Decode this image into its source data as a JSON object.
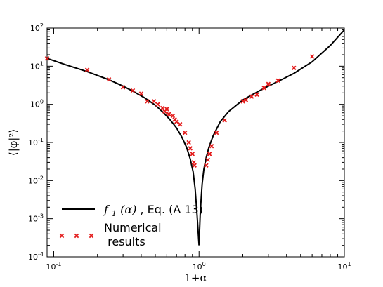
{
  "chart_data": {
    "type": "line",
    "title": "",
    "xlabel": "1+α",
    "ylabel": "⟨|φ|²⟩",
    "xscale": "log",
    "yscale": "log",
    "xlim": [
      0.09,
      10
    ],
    "ylim": [
      0.0001,
      100
    ],
    "x_ticks": [
      {
        "value": 0.1,
        "base": "10",
        "exp": "-1"
      },
      {
        "value": 1,
        "base": "10",
        "exp": "0"
      },
      {
        "value": 10,
        "base": "10",
        "exp": "1"
      }
    ],
    "y_ticks": [
      {
        "value": 0.0001,
        "base": "10",
        "exp": "-4"
      },
      {
        "value": 0.001,
        "base": "10",
        "exp": "-3"
      },
      {
        "value": 0.01,
        "base": "10",
        "exp": "-2"
      },
      {
        "value": 0.1,
        "base": "10",
        "exp": "-1"
      },
      {
        "value": 1,
        "base": "10",
        "exp": "0"
      },
      {
        "value": 10,
        "base": "10",
        "exp": "1"
      },
      {
        "value": 100,
        "base": "10",
        "exp": "2"
      }
    ],
    "grid": false,
    "legend_position": "lower-left",
    "series": [
      {
        "name": "f₁(α), Eq. (A 13)",
        "legend_func": "f",
        "legend_sub": "1",
        "legend_arg": "(α)",
        "legend_rest": ", Eq. (A 13)",
        "style": "line",
        "color": "#000000",
        "x": [
          0.09,
          0.12,
          0.17,
          0.24,
          0.3,
          0.36,
          0.42,
          0.5,
          0.57,
          0.63,
          0.7,
          0.76,
          0.82,
          0.87,
          0.91,
          0.94,
          0.97,
          1.0,
          1.02,
          1.05,
          1.08,
          1.12,
          1.17,
          1.25,
          1.4,
          1.6,
          2.0,
          2.5,
          3.0,
          3.5,
          4.5,
          6.0,
          8.0,
          10.0
        ],
        "y": [
          16,
          11,
          7.2,
          4.4,
          3.0,
          2.1,
          1.5,
          0.95,
          0.6,
          0.4,
          0.24,
          0.14,
          0.075,
          0.037,
          0.017,
          0.006,
          0.0012,
          0.0002,
          0.0015,
          0.008,
          0.02,
          0.04,
          0.075,
          0.15,
          0.35,
          0.65,
          1.3,
          2.1,
          3.0,
          4.0,
          6.5,
          13,
          35,
          90
        ]
      },
      {
        "name": "Numerical\n results",
        "legend_line1": "Numerical",
        "legend_line2": " results",
        "style": "scatter",
        "marker": "x",
        "color": "#e31a1a",
        "x": [
          0.09,
          0.17,
          0.24,
          0.3,
          0.35,
          0.4,
          0.44,
          0.49,
          0.52,
          0.56,
          0.58,
          0.6,
          0.62,
          0.66,
          0.68,
          0.7,
          0.74,
          0.8,
          0.85,
          0.87,
          0.9,
          0.92,
          0.93,
          1.12,
          1.15,
          1.18,
          1.22,
          1.32,
          1.5,
          2.0,
          2.1,
          2.3,
          2.5,
          2.8,
          3.0,
          3.5,
          4.5,
          6.0
        ],
        "y": [
          16,
          8.0,
          4.5,
          2.8,
          2.3,
          1.9,
          1.2,
          1.2,
          1.0,
          0.8,
          0.65,
          0.75,
          0.55,
          0.5,
          0.4,
          0.35,
          0.3,
          0.18,
          0.1,
          0.07,
          0.05,
          0.03,
          0.025,
          0.025,
          0.035,
          0.05,
          0.08,
          0.18,
          0.38,
          1.2,
          1.3,
          1.6,
          1.8,
          2.7,
          3.4,
          4.2,
          9.0,
          18
        ]
      }
    ]
  }
}
